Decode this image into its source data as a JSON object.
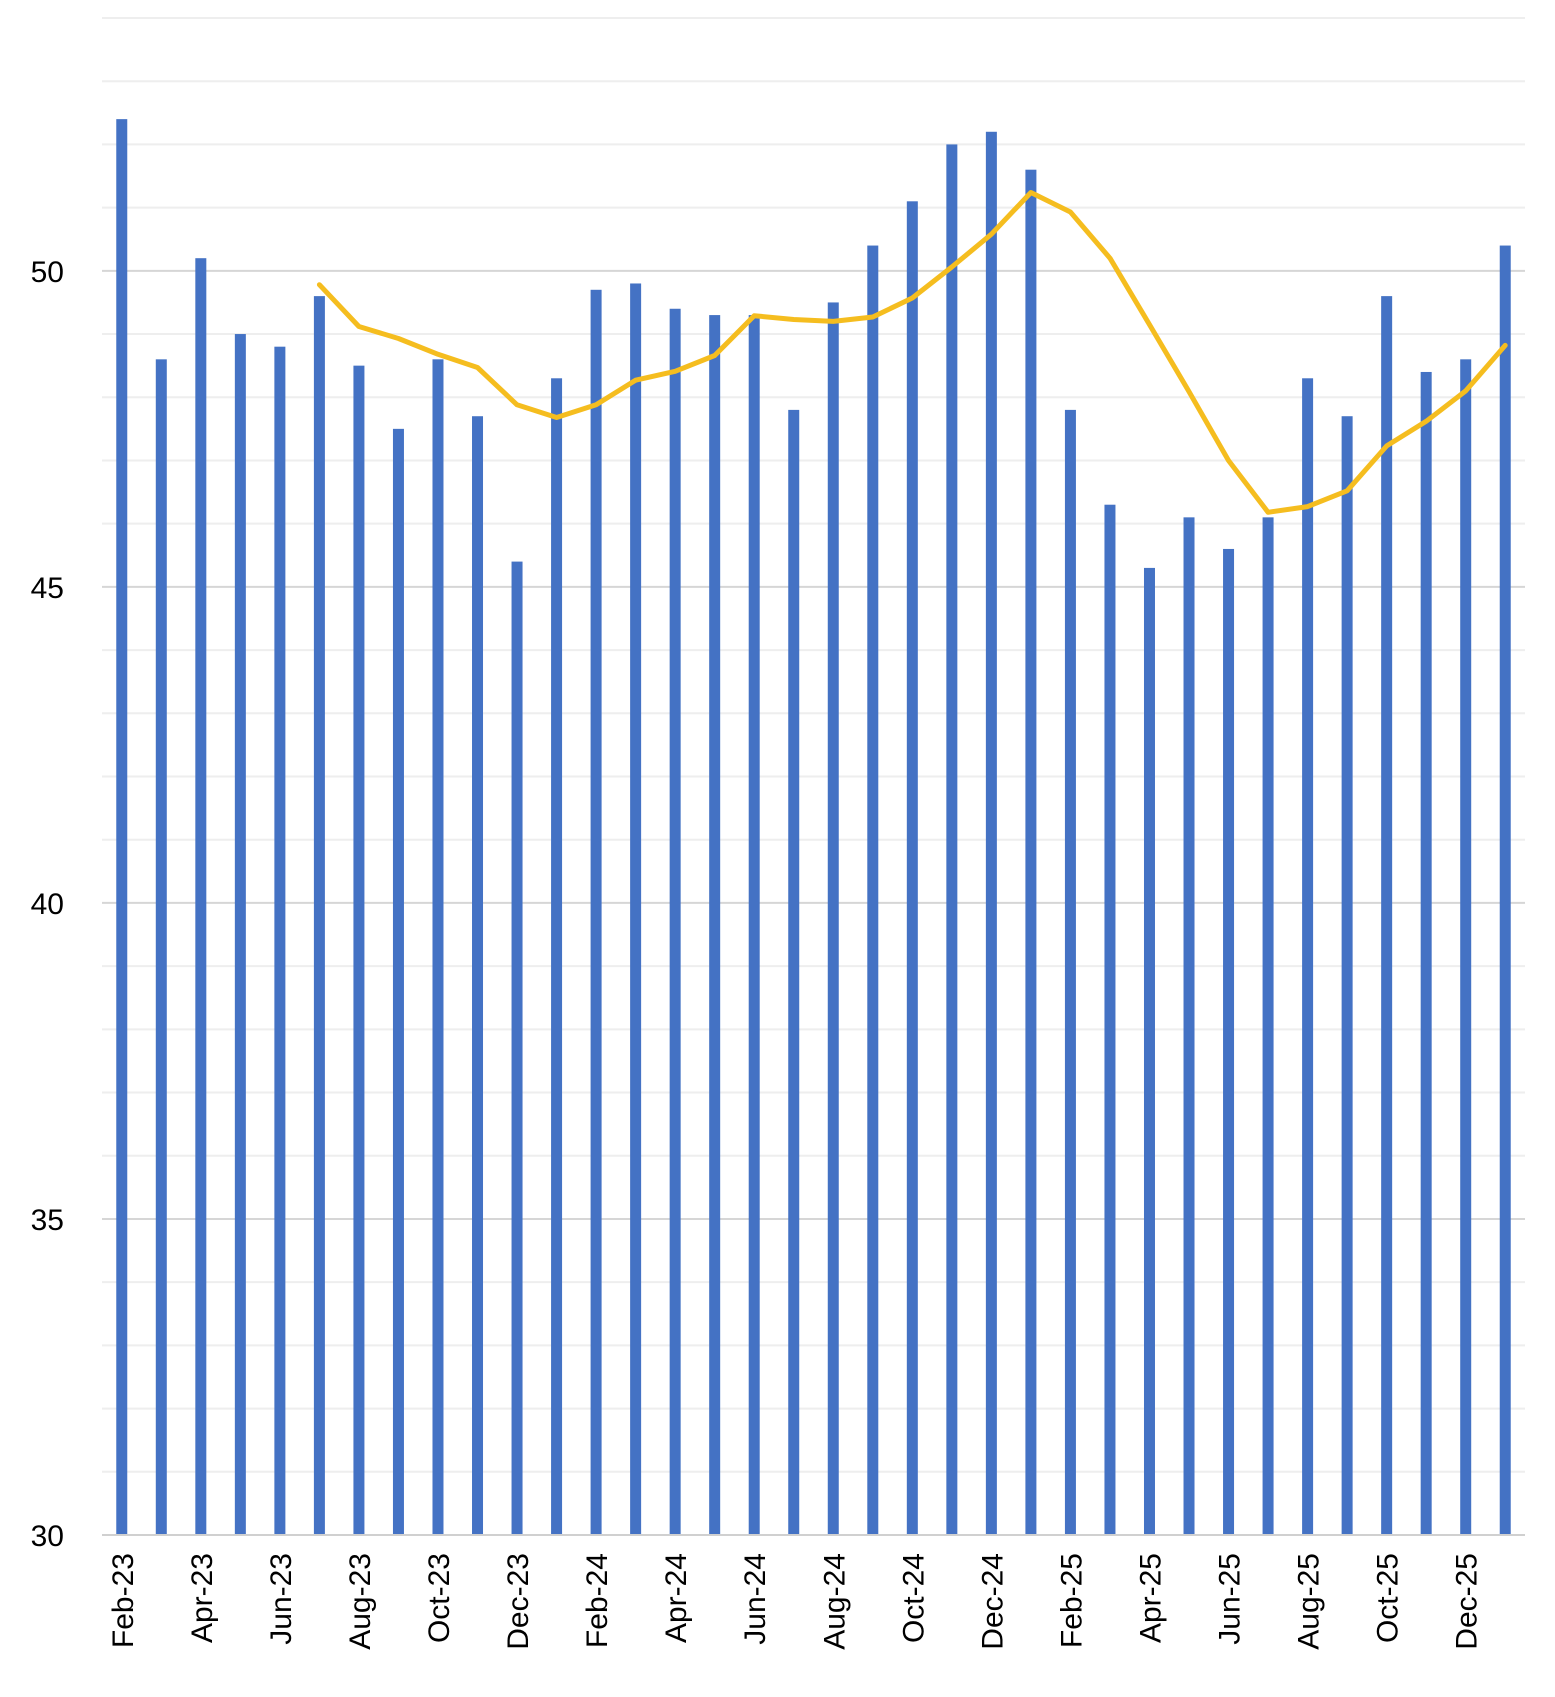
{
  "chart_data": {
    "type": "bar",
    "title": "",
    "xlabel": "",
    "ylabel": "",
    "ylim": [
      30,
      54
    ],
    "yticks": [
      30,
      35,
      40,
      45,
      50
    ],
    "minor_gridlines": true,
    "legend": "none",
    "categories": [
      "Feb-23",
      "Mar-23",
      "Apr-23",
      "May-23",
      "Jun-23",
      "Jul-23",
      "Aug-23",
      "Sep-23",
      "Oct-23",
      "Nov-23",
      "Dec-23",
      "Jan-24",
      "Feb-24",
      "Mar-24",
      "Apr-24",
      "May-24",
      "Jun-24",
      "Jul-24",
      "Aug-24",
      "Sep-24",
      "Oct-24",
      "Nov-24",
      "Dec-24",
      "Jan-25",
      "Feb-25",
      "Mar-25",
      "Apr-25",
      "May-25",
      "Jun-25",
      "Jul-25",
      "Aug-25",
      "Sep-25",
      "Oct-25",
      "Nov-25",
      "Dec-25",
      "Jan-26"
    ],
    "x_tick_labels": [
      "Feb-23",
      "",
      "Apr-23",
      "",
      "Jun-23",
      "",
      "Aug-23",
      "",
      "Oct-23",
      "",
      "Dec-23",
      "",
      "Feb-24",
      "",
      "Apr-24",
      "",
      "Jun-24",
      "",
      "Aug-24",
      "",
      "Oct-24",
      "",
      "Dec-24",
      "",
      "Feb-25",
      "",
      "Apr-25",
      "",
      "Jun-25",
      "",
      "Aug-25",
      "",
      "Oct-25",
      "",
      "Dec-25",
      ""
    ],
    "series": [
      {
        "kind": "bar",
        "color": "#4472C4",
        "values": [
          52.4,
          48.6,
          50.2,
          49.0,
          48.8,
          49.6,
          48.5,
          47.5,
          48.6,
          47.7,
          45.4,
          48.3,
          49.7,
          49.8,
          49.4,
          49.3,
          49.3,
          47.8,
          49.5,
          50.4,
          51.1,
          52.0,
          52.2,
          51.6,
          47.8,
          46.3,
          45.3,
          46.1,
          45.6,
          46.1,
          48.3,
          47.7,
          49.6,
          48.4,
          48.6,
          50.4
        ]
      },
      {
        "kind": "line",
        "color": "#F5BD1F",
        "values": [
          null,
          null,
          null,
          null,
          null,
          49.78,
          49.12,
          48.93,
          48.68,
          48.47,
          47.88,
          47.68,
          47.88,
          48.27,
          48.41,
          48.66,
          49.29,
          49.23,
          49.2,
          49.27,
          49.57,
          50.06,
          50.58,
          51.24,
          50.93,
          50.2,
          49.15,
          48.09,
          47.0,
          46.18,
          46.27,
          46.52,
          47.23,
          47.62,
          48.1,
          48.82
        ]
      }
    ]
  }
}
